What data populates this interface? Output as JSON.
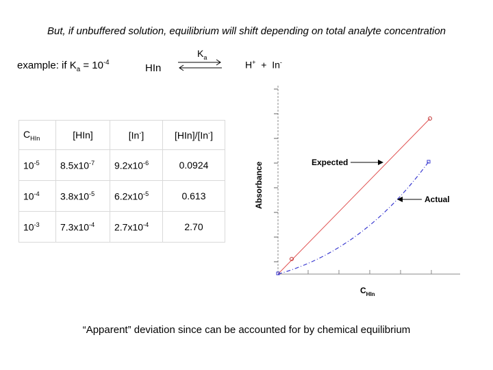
{
  "header": {
    "title": "But, if unbuffered solution, equilibrium will shift depending on total analyte concentration"
  },
  "equation": {
    "example_prefix": "example:  if K",
    "example_sub": "a",
    "example_mid": " = 10",
    "example_sup": "-4",
    "reactant": "HIn",
    "ka_main": "K",
    "ka_sub": "a",
    "h": "H",
    "h_sup": "+",
    "plus": "+",
    "in": "In",
    "in_sup": "-"
  },
  "table": {
    "headers": {
      "c_main": "C",
      "c_sub": "HIn",
      "hin": "[HIn]",
      "in_main": "[In",
      "in_sup": "-",
      "in_close": "]",
      "ratio_main": "[HIn]/[In",
      "ratio_sup": "-",
      "ratio_close": "]"
    },
    "rows": [
      {
        "c": "10",
        "c_exp": "-5",
        "hin": "8.5x10",
        "hin_exp": "-7",
        "in": "9.2x10",
        "in_exp": "-6",
        "ratio": "0.0924"
      },
      {
        "c": "10",
        "c_exp": "-4",
        "hin": "3.8x10",
        "hin_exp": "-5",
        "in": "6.2x10",
        "in_exp": "-5",
        "ratio": "0.613"
      },
      {
        "c": "10",
        "c_exp": "-3",
        "hin": "7.3x10",
        "hin_exp": "-4",
        "in": "2.7x10",
        "in_exp": "-4",
        "ratio": "2.70"
      }
    ]
  },
  "graph": {
    "y_label": "Absorbance",
    "x_label_main": "C",
    "x_label_sub": "HIn",
    "expected_label": "Expected",
    "actual_label": "Actual",
    "expected_color": "#e05050",
    "actual_color": "#3a3ad0"
  },
  "footer": {
    "text": "“Apparent” deviation since can be accounted for by chemical equilibrium"
  }
}
